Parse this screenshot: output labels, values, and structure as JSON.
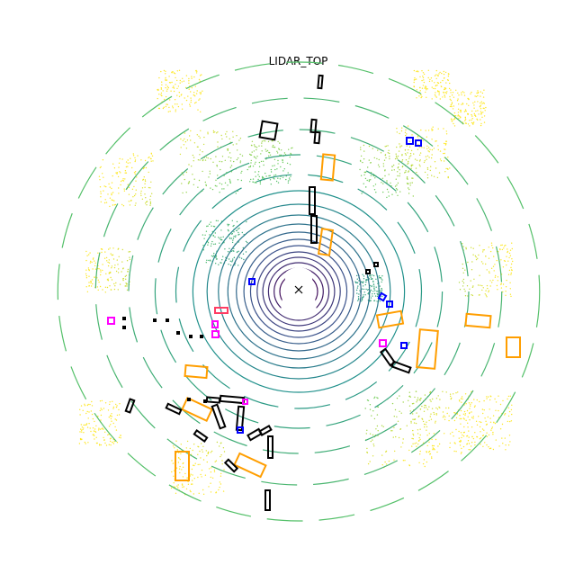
{
  "figure": {
    "title": "LIDAR_TOP",
    "ego_marker": "x",
    "colormap": "viridis"
  },
  "legend_colors": {
    "car": "#ff9e00",
    "pedestrian": "#0000ff",
    "barrier": "#000000",
    "traffic_cone": "#ff00ff",
    "bicycle": "#ff3d63",
    "ego": "#000000"
  }
}
